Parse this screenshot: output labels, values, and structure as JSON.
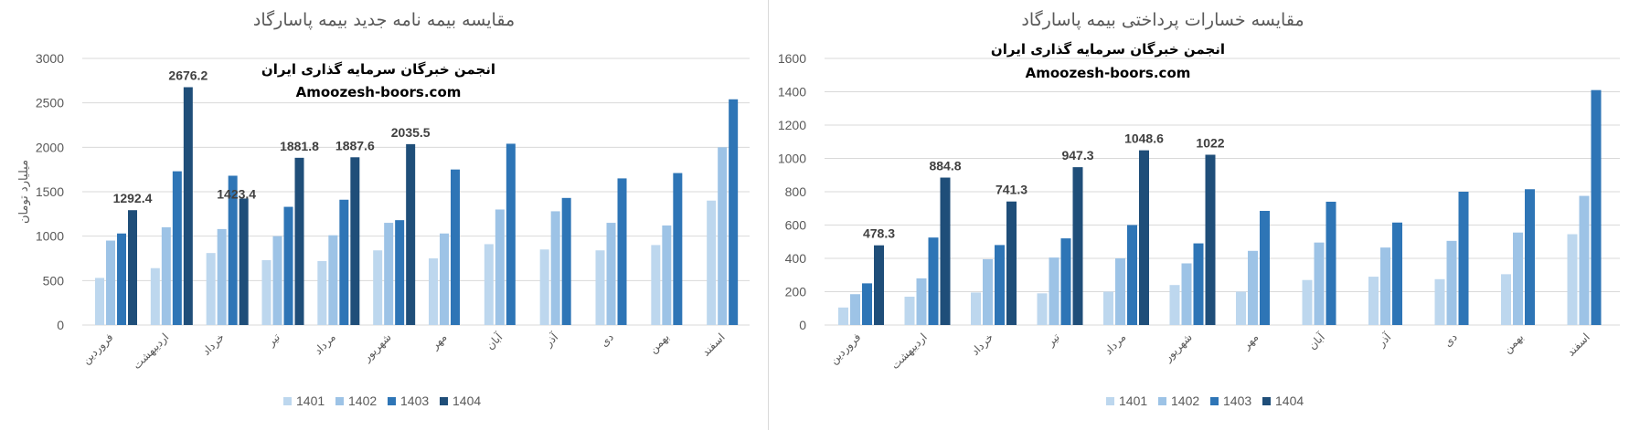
{
  "colors": {
    "1401": "#bdd7ee",
    "1402": "#9dc3e6",
    "1403": "#2e75b6",
    "1404": "#1f4e79"
  },
  "chart_data": [
    {
      "type": "bar",
      "title": "مقایسه بیمه نامه جدید بیمه پاسارگاد",
      "watermark": [
        "انجمن خبرگان سرمایه گذاری ایران",
        "Amoozesh-boors.com"
      ],
      "ylabel": "میلیارد تومان",
      "xlabel": "",
      "ylim": [
        0,
        3000
      ],
      "yticks": [
        "0",
        "500",
        "1000",
        "1500",
        "2000",
        "2500",
        "3000"
      ],
      "legend_position": "bottom",
      "categories": [
        "فروردین",
        "اردیبهشت",
        "خرداد",
        "تیر",
        "مرداد",
        "شهریور",
        "مهر",
        "آبان",
        "آذر",
        "دی",
        "بهمن",
        "اسفند"
      ],
      "series": [
        {
          "name": "1401",
          "values": [
            530,
            640,
            810,
            730,
            720,
            840,
            750,
            910,
            850,
            840,
            900,
            1400
          ]
        },
        {
          "name": "1402",
          "values": [
            950,
            1100,
            1080,
            1000,
            1010,
            1150,
            1030,
            1300,
            1280,
            1150,
            1120,
            2000
          ]
        },
        {
          "name": "1403",
          "values": [
            1030,
            1730,
            1680,
            1330,
            1410,
            1180,
            1750,
            2040,
            1430,
            1650,
            1710,
            2540
          ]
        },
        {
          "name": "1404",
          "values": [
            1292.4,
            2676.2,
            1423.4,
            1881.8,
            1887.6,
            2035.5,
            null,
            null,
            null,
            null,
            null,
            null
          ]
        }
      ],
      "data_labels": [
        "1292.4",
        "2676.2",
        "1423.4",
        "1881.8",
        "1887.6",
        "2035.5"
      ]
    },
    {
      "type": "bar",
      "title": "مقایسه خسارات پرداختی بیمه پاسارگاد",
      "watermark": [
        "انجمن خبرگان سرمایه گذاری ایران",
        "Amoozesh-boors.com"
      ],
      "ylabel": "",
      "xlabel": "",
      "ylim": [
        0,
        1600
      ],
      "yticks": [
        "0",
        "200",
        "400",
        "600",
        "800",
        "1000",
        "1200",
        "1400",
        "1600"
      ],
      "legend_position": "bottom",
      "categories": [
        "فروردین",
        "اردیبهشت",
        "خرداد",
        "تیر",
        "مرداد",
        "شهریور",
        "مهر",
        "آبان",
        "آذر",
        "دی",
        "بهمن",
        "اسفند"
      ],
      "series": [
        {
          "name": "1401",
          "values": [
            105,
            170,
            195,
            190,
            200,
            240,
            200,
            270,
            290,
            275,
            305,
            545
          ]
        },
        {
          "name": "1402",
          "values": [
            185,
            280,
            395,
            405,
            400,
            370,
            445,
            495,
            465,
            505,
            555,
            775
          ]
        },
        {
          "name": "1403",
          "values": [
            250,
            525,
            480,
            520,
            600,
            490,
            685,
            740,
            615,
            800,
            815,
            1410
          ]
        },
        {
          "name": "1404",
          "values": [
            478.3,
            884.8,
            741.3,
            947.3,
            1048.6,
            1022,
            null,
            null,
            null,
            null,
            null,
            null
          ]
        }
      ],
      "data_labels": [
        "478.3",
        "884.8",
        "741.3",
        "947.3",
        "1048.6",
        "1022"
      ]
    }
  ]
}
